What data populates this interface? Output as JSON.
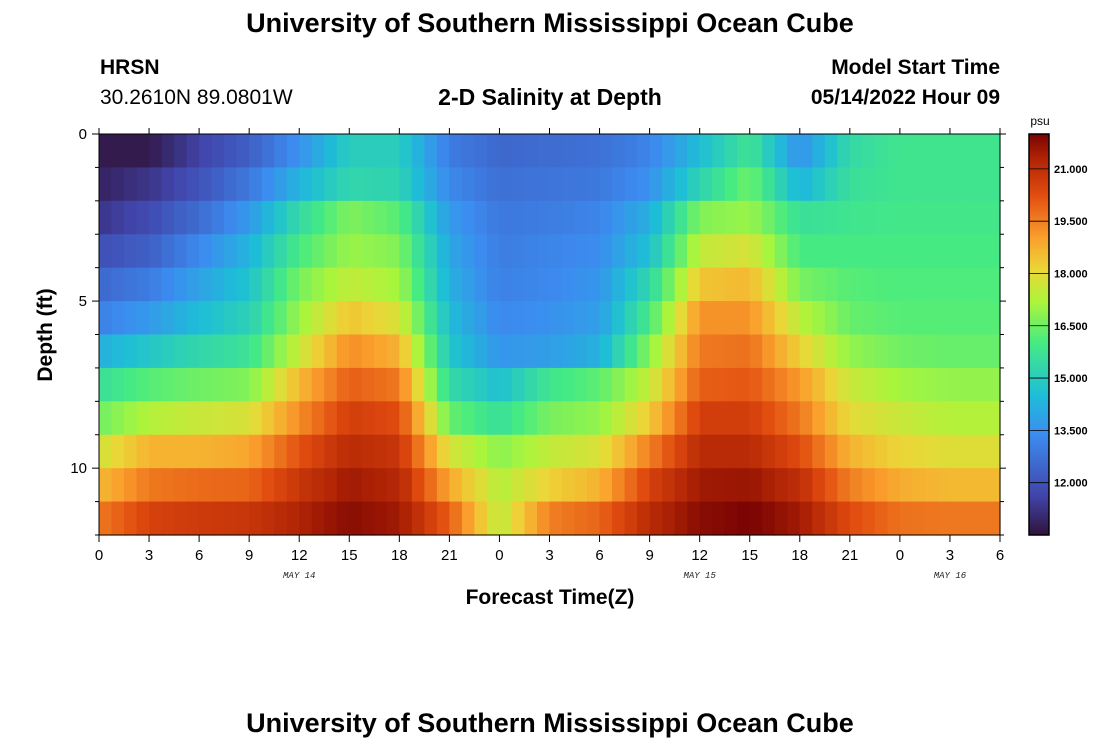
{
  "header": {
    "title": "University of Southern Mississippi Ocean Cube",
    "station": "HRSN",
    "coordinates": "30.2610N  89.0801W",
    "plot_title": "2-D Salinity at Depth",
    "model_start_label": "Model Start Time",
    "model_start_value": "05/14/2022 Hour 09"
  },
  "footer": {
    "title": "University of Southern Mississippi Ocean Cube"
  },
  "chart_data": {
    "type": "heatmap",
    "title": "2-D Salinity at Depth",
    "xlabel": "Forecast Time(Z)",
    "ylabel": "Depth (ft)",
    "x_ticks": [
      "0",
      "3",
      "6",
      "9",
      "12",
      "15",
      "18",
      "21",
      "0",
      "3",
      "6",
      "9",
      "12",
      "15",
      "18",
      "21",
      "0",
      "3",
      "6"
    ],
    "x_hours_range": [
      0,
      54
    ],
    "day_labels": [
      {
        "label": "MAY 14",
        "hour": 12
      },
      {
        "label": "MAY 15",
        "hour": 36
      },
      {
        "label": "MAY 16",
        "hour": 51
      }
    ],
    "y_ticks": [
      "0",
      "5",
      "10"
    ],
    "ylim": [
      0,
      12
    ],
    "colorbar": {
      "unit": "psu",
      "min": 10.5,
      "max": 22.0,
      "tick_labels": [
        "21.000",
        "19.500",
        "18.000",
        "16.500",
        "15.000",
        "13.500",
        "12.000"
      ],
      "tick_values": [
        21.0,
        19.5,
        18.0,
        16.5,
        15.0,
        13.5,
        12.0
      ]
    },
    "depth_levels": 12,
    "time_samples_hours": [
      0,
      3,
      6,
      9,
      12,
      15,
      18,
      21,
      24,
      27,
      30,
      33,
      36,
      39,
      42,
      45,
      48,
      51,
      54
    ],
    "values_psu": [
      [
        10.7,
        10.7,
        11.6,
        12.3,
        13.5,
        15.0,
        15.0,
        13.0,
        12.5,
        12.6,
        12.7,
        13.2,
        14.5,
        15.8,
        13.5,
        15.4,
        15.8,
        15.8,
        15.8
      ],
      [
        10.9,
        11.3,
        12.0,
        12.9,
        14.3,
        15.3,
        15.2,
        13.3,
        12.7,
        12.8,
        12.9,
        13.5,
        15.2,
        16.5,
        14.3,
        15.6,
        15.8,
        15.8,
        15.8
      ],
      [
        11.3,
        11.8,
        12.6,
        13.7,
        15.4,
        16.7,
        16.2,
        13.7,
        12.9,
        13.0,
        13.2,
        14.2,
        16.7,
        17.0,
        15.6,
        15.8,
        15.9,
        15.9,
        15.9
      ],
      [
        11.9,
        12.3,
        13.3,
        14.3,
        16.0,
        17.0,
        16.7,
        14.0,
        13.0,
        13.2,
        13.4,
        14.6,
        17.5,
        17.8,
        16.0,
        16.0,
        16.0,
        16.0,
        16.0
      ],
      [
        12.5,
        13.0,
        13.9,
        14.7,
        16.6,
        17.5,
        17.1,
        14.2,
        13.1,
        13.3,
        13.6,
        15.3,
        18.4,
        18.6,
        16.6,
        16.2,
        16.1,
        16.1,
        16.1
      ],
      [
        13.1,
        13.7,
        14.5,
        15.1,
        17.0,
        18.4,
        17.8,
        14.5,
        13.3,
        13.5,
        13.8,
        16.0,
        19.2,
        19.2,
        17.4,
        16.4,
        16.2,
        16.2,
        16.2
      ],
      [
        14.2,
        14.8,
        15.3,
        15.7,
        17.6,
        19.3,
        18.7,
        14.8,
        13.6,
        13.8,
        14.2,
        16.8,
        19.6,
        19.7,
        18.2,
        16.9,
        16.5,
        16.4,
        16.4
      ],
      [
        15.6,
        16.2,
        16.5,
        16.7,
        18.6,
        20.0,
        19.6,
        15.4,
        14.6,
        15.8,
        16.3,
        17.5,
        20.0,
        20.1,
        19.1,
        17.6,
        17.1,
        16.9,
        16.9
      ],
      [
        16.5,
        17.3,
        17.6,
        17.8,
        19.3,
        20.6,
        20.3,
        16.4,
        15.6,
        16.6,
        16.9,
        18.3,
        20.6,
        20.6,
        19.6,
        18.0,
        17.6,
        17.3,
        17.3
      ],
      [
        17.7,
        18.7,
        18.7,
        18.9,
        20.2,
        21.1,
        20.8,
        17.8,
        16.8,
        17.5,
        17.8,
        19.5,
        21.1,
        21.1,
        20.3,
        18.7,
        18.1,
        17.9,
        17.9
      ],
      [
        18.6,
        19.6,
        19.8,
        19.9,
        20.8,
        21.5,
        21.2,
        18.9,
        17.3,
        18.2,
        18.7,
        20.5,
        21.5,
        21.6,
        21.0,
        19.5,
        18.8,
        18.6,
        18.6
      ],
      [
        19.6,
        20.5,
        20.7,
        20.8,
        21.3,
        21.8,
        21.5,
        20.0,
        17.4,
        19.5,
        19.9,
        21.1,
        21.8,
        22.0,
        21.5,
        20.3,
        19.7,
        19.6,
        19.6
      ]
    ]
  }
}
